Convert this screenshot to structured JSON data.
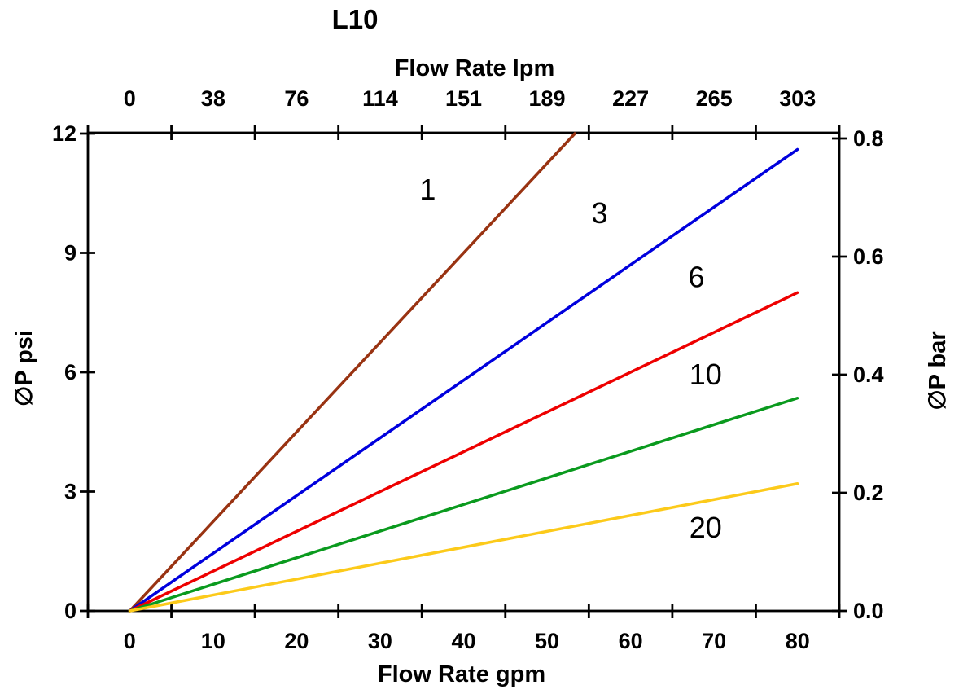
{
  "window": {
    "background": "#ffffff"
  },
  "chart_data": {
    "type": "line",
    "title": "L10",
    "grid": false,
    "legend": "inline curve labels",
    "axes": {
      "top": {
        "title": "Flow Rate lpm",
        "tick_labels": [
          "0",
          "38",
          "76",
          "114",
          "151",
          "189",
          "227",
          "265",
          "303"
        ]
      },
      "bottom": {
        "title": "Flow Rate gpm",
        "tick_labels": [
          "0",
          "10",
          "20",
          "30",
          "40",
          "50",
          "60",
          "70",
          "80"
        ]
      },
      "left": {
        "title": "∅P psi",
        "tick_labels": [
          "0",
          "3",
          "6",
          "9",
          "12"
        ],
        "range": [
          0,
          12
        ]
      },
      "right": {
        "title": "∅P bar",
        "tick_labels": [
          "0.0",
          "0.2",
          "0.4",
          "0.6",
          "0.8"
        ],
        "range": [
          0,
          0.8
        ]
      }
    },
    "x_range_gpm": [
      0,
      80
    ],
    "series": [
      {
        "label": "1",
        "color": "#993312",
        "x_gpm": [
          0,
          80
        ],
        "y_psi": [
          0,
          18.0
        ],
        "clipped_at_psi": 12,
        "label_at": [
          35.7,
          10.6
        ]
      },
      {
        "label": "3",
        "color": "#0000dd",
        "x_gpm": [
          0,
          80
        ],
        "y_psi": [
          0,
          11.6
        ],
        "label_at": [
          56.3,
          10.0
        ]
      },
      {
        "label": "6",
        "color": "#ee0000",
        "x_gpm": [
          0,
          80
        ],
        "y_psi": [
          0,
          8.0
        ],
        "label_at": [
          67.9,
          8.4
        ]
      },
      {
        "label": "10",
        "color": "#0a9a1e",
        "x_gpm": [
          0,
          80
        ],
        "y_psi": [
          0,
          5.35
        ],
        "label_at": [
          69.0,
          5.95
        ]
      },
      {
        "label": "20",
        "color": "#fcca1a",
        "x_gpm": [
          0,
          80
        ],
        "y_psi": [
          0,
          3.2
        ],
        "label_at": [
          69.0,
          2.1
        ]
      }
    ]
  }
}
